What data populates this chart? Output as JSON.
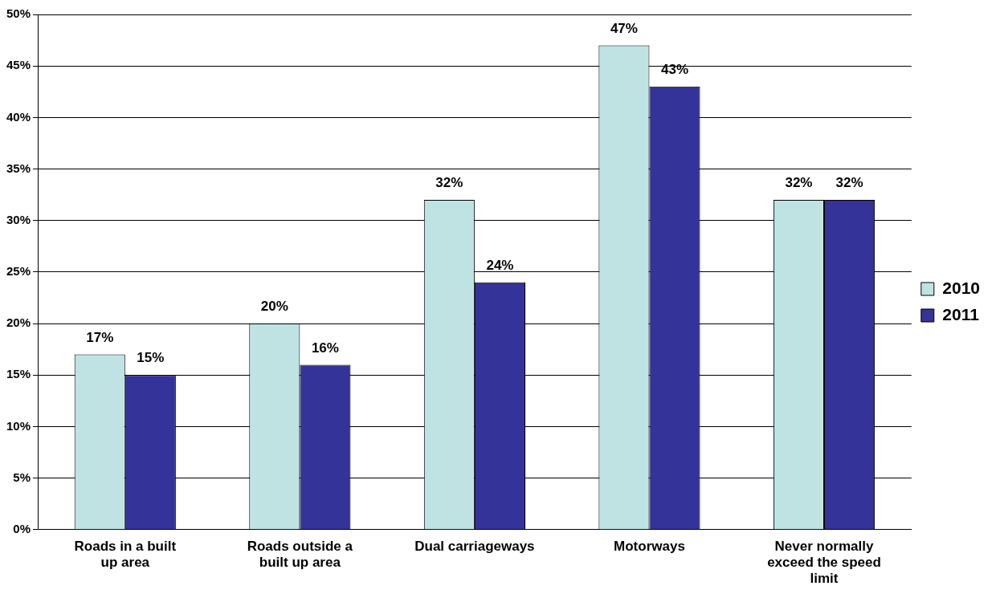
{
  "chart_data": {
    "type": "bar",
    "categories": [
      "Roads in a built up area",
      "Roads outside a built up area",
      "Dual carriageways",
      "Motorways",
      "Never normally exceed the speed limit"
    ],
    "series": [
      {
        "name": "2010",
        "color": "#bfe3e3",
        "values": [
          17,
          20,
          32,
          47,
          32
        ],
        "value_labels": [
          "17%",
          "20%",
          "32%",
          "47%",
          "32%"
        ]
      },
      {
        "name": "2011",
        "color": "#333399",
        "values": [
          15,
          16,
          24,
          43,
          32
        ],
        "value_labels": [
          "15%",
          "16%",
          "24%",
          "43%",
          "32%"
        ]
      }
    ],
    "ylim": [
      0,
      50
    ],
    "yticks": [
      {
        "value": 0,
        "label": "0%"
      },
      {
        "value": 5,
        "label": "5%"
      },
      {
        "value": 10,
        "label": "10%"
      },
      {
        "value": 15,
        "label": "15%"
      },
      {
        "value": 20,
        "label": "20%"
      },
      {
        "value": 25,
        "label": "25%"
      },
      {
        "value": 30,
        "label": "30%"
      },
      {
        "value": 35,
        "label": "35%"
      },
      {
        "value": 40,
        "label": "40%"
      },
      {
        "value": 45,
        "label": "45%"
      },
      {
        "value": 50,
        "label": "50%"
      }
    ],
    "grid": "y",
    "legend": "right"
  }
}
